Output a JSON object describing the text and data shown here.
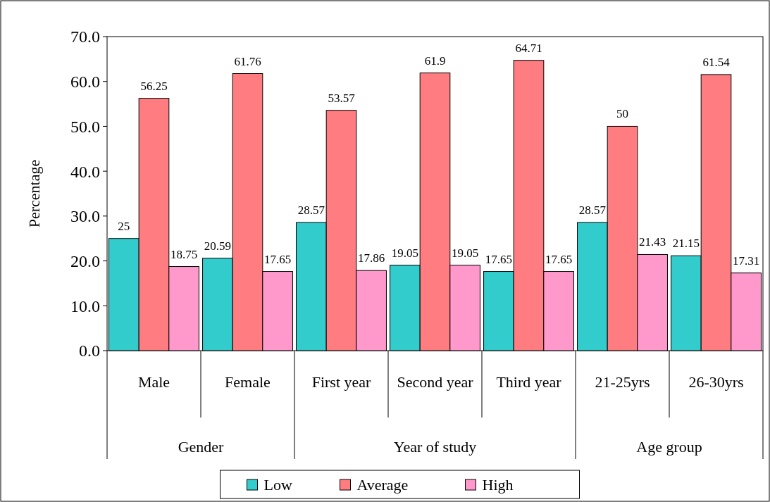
{
  "chart_data": {
    "type": "bar",
    "ylabel": "Percentage",
    "categories": [
      "Male",
      "Female",
      "First year",
      "Second year",
      "Third year",
      "21-25yrs",
      "26-30yrs"
    ],
    "series": [
      {
        "name": "Low",
        "color": "#33cccc",
        "values": [
          25,
          20.59,
          28.57,
          19.05,
          17.65,
          28.57,
          21.15
        ]
      },
      {
        "name": "Average",
        "color": "#ff7c80",
        "values": [
          56.25,
          61.76,
          53.57,
          61.9,
          64.71,
          50,
          61.54
        ]
      },
      {
        "name": "High",
        "color": "#ff99cc",
        "values": [
          18.75,
          17.65,
          17.86,
          19.05,
          17.65,
          21.43,
          17.31
        ]
      }
    ],
    "ylim": [
      0,
      70
    ],
    "yticks": [
      {
        "value": 0,
        "label": "0.0"
      },
      {
        "value": 10,
        "label": "10.0"
      },
      {
        "value": 20,
        "label": "20.0"
      },
      {
        "value": 30,
        "label": "30.0"
      },
      {
        "value": 40,
        "label": "40.0"
      },
      {
        "value": 50,
        "label": "50.0"
      },
      {
        "value": 60,
        "label": "60.0"
      },
      {
        "value": 70,
        "label": "70.0"
      }
    ],
    "annotations": [
      "Gender",
      "Year of study",
      "Age group"
    ],
    "data_labels": true,
    "grid": false,
    "legend": "bottom"
  }
}
